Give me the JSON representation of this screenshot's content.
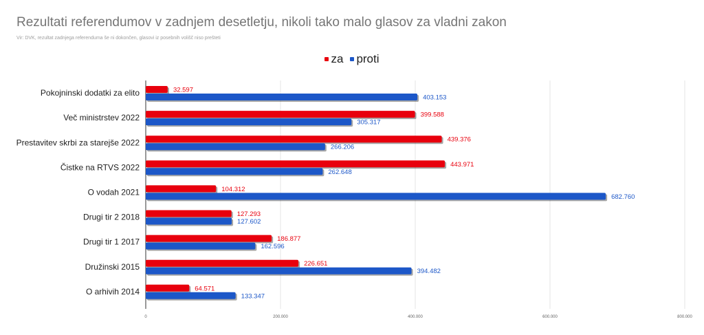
{
  "chart_data": {
    "type": "bar",
    "orientation": "horizontal",
    "title": "Rezultati referendumov v zadnjem desetletju, nikoli tako malo glasov za vladni zakon",
    "subtitle": "Vir: DVK, rezultat zadnjega referenduma še ni dokončen, glasovi iz posebnih volišč niso prešteti",
    "categories": [
      "Pokojninski dodatki za elito",
      "Več ministrstev 2022",
      "Prestavitev skrbi za starejše 2022",
      "Čistke na RTVS 2022",
      "O vodah 2021",
      "Drugi tir 2 2018",
      "Drugi tir  1 2017",
      "Družinski 2015",
      "O arhivih 2014"
    ],
    "series": [
      {
        "name": "za",
        "color": "#e8000d",
        "values": [
          32597,
          399588,
          439376,
          443971,
          104312,
          127293,
          186877,
          226651,
          64571
        ],
        "labels": [
          "32.597",
          "399.588",
          "439.376",
          "443.971",
          "104.312",
          "127.293",
          "186.877",
          "226.651",
          "64.571"
        ]
      },
      {
        "name": "proti",
        "color": "#1c57c8",
        "values": [
          403153,
          305317,
          266206,
          262648,
          682760,
          127602,
          162596,
          394482,
          133347
        ],
        "labels": [
          "403.153",
          "305.317",
          "266.206",
          "262.648",
          "682.760",
          "127.602",
          "162.596",
          "394.482",
          "133.347"
        ]
      }
    ],
    "xlim": [
      0,
      800000
    ],
    "xticks": [
      0,
      200000,
      400000,
      600000,
      800000
    ],
    "xtick_labels": [
      "0",
      "200.000",
      "400.000",
      "600.000",
      "800.000"
    ],
    "grid": true,
    "legend_position": "top-center"
  }
}
